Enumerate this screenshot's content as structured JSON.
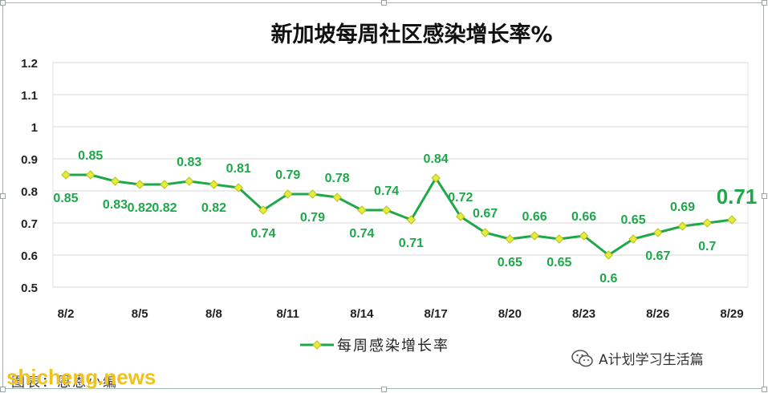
{
  "chart_data": {
    "type": "line",
    "title": "新加坡每周社区感染增长率%",
    "xlabel": "",
    "ylabel": "",
    "ylim": [
      0.5,
      1.2
    ],
    "yticks": [
      "0.5",
      "0.6",
      "0.7",
      "0.8",
      "0.9",
      "1",
      "1.1",
      "1.2"
    ],
    "x_tick_labels": [
      "8/2",
      "8/5",
      "8/8",
      "8/11",
      "8/14",
      "8/17",
      "8/20",
      "8/23",
      "8/26",
      "8/29"
    ],
    "categories": [
      "8/2",
      "8/3",
      "8/4",
      "8/5",
      "8/6",
      "8/7",
      "8/8",
      "8/9",
      "8/10",
      "8/11",
      "8/12",
      "8/13",
      "8/14",
      "8/15",
      "8/16",
      "8/17",
      "8/18",
      "8/19",
      "8/20",
      "8/21",
      "8/22",
      "8/23",
      "8/24",
      "8/25",
      "8/26",
      "8/27",
      "8/28",
      "8/29"
    ],
    "series": [
      {
        "name": "每周感染增长率",
        "color": "#1fa84a",
        "marker_color": "#e6ec3c",
        "values": [
          0.85,
          0.85,
          0.83,
          0.82,
          0.82,
          0.83,
          0.82,
          0.81,
          0.74,
          0.79,
          0.79,
          0.78,
          0.74,
          0.74,
          0.71,
          0.84,
          0.72,
          0.67,
          0.65,
          0.66,
          0.65,
          0.66,
          0.6,
          0.65,
          0.67,
          0.69,
          0.7,
          0.71
        ]
      }
    ],
    "data_labels": [
      "0.85",
      "0.85",
      "0.83",
      "0.82",
      "0.82",
      "0.83",
      "0.82",
      "0.81",
      "0.74",
      "0.79",
      "0.79",
      "0.78",
      "0.74",
      "0.74",
      "0.71",
      "0.84",
      "0.72",
      "0.67",
      "0.65",
      "0.66",
      "0.65",
      "0.66",
      "0.6",
      "0.65",
      "0.67",
      "0.69",
      "0.7",
      "0.71"
    ],
    "grid": true,
    "legend": "bottom"
  },
  "footer": {
    "caption": "图表：恩恩小编",
    "site_mark": "shicheng.news",
    "wechat_text": "A计划学习生活篇"
  },
  "colors": {
    "line": "#1fa84a",
    "label": "#1fa84a",
    "grid": "#d9d9d9"
  }
}
